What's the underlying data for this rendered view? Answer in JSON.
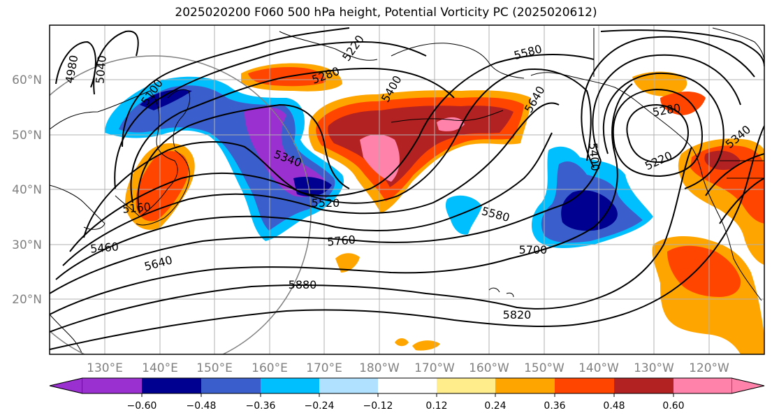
{
  "title": "2025020200 F060 500 hPa height, Potential Vorticity PC (2025020612)",
  "map": {
    "lat_labels": [
      "60°N",
      "50°N",
      "40°N",
      "30°N",
      "20°N"
    ],
    "lon_labels": [
      "130°E",
      "140°E",
      "150°E",
      "160°E",
      "170°E",
      "180°W",
      "170°W",
      "160°W",
      "150°W",
      "140°W",
      "130°W",
      "120°W"
    ],
    "contour_labels": [
      "4980",
      "5040",
      "5100",
      "5220",
      "5280",
      "5400",
      "5580",
      "5640",
      "5400",
      "5280",
      "5220",
      "5340",
      "5340",
      "5160",
      "5520",
      "5460",
      "5640",
      "5760",
      "5580",
      "5700",
      "5880",
      "5820"
    ]
  },
  "colorbar": {
    "tick_labels": [
      "−0.60",
      "−0.48",
      "−0.36",
      "−0.24",
      "−0.12",
      "0.12",
      "0.24",
      "0.36",
      "0.48",
      "0.60"
    ],
    "colors": [
      "#9b30d0",
      "#000090",
      "#3a5fcd",
      "#00bfff",
      "#b0e2ff",
      "#ffffff",
      "#ffec8b",
      "#ffa500",
      "#ff4500",
      "#b22222",
      "#ff82ab"
    ]
  }
}
